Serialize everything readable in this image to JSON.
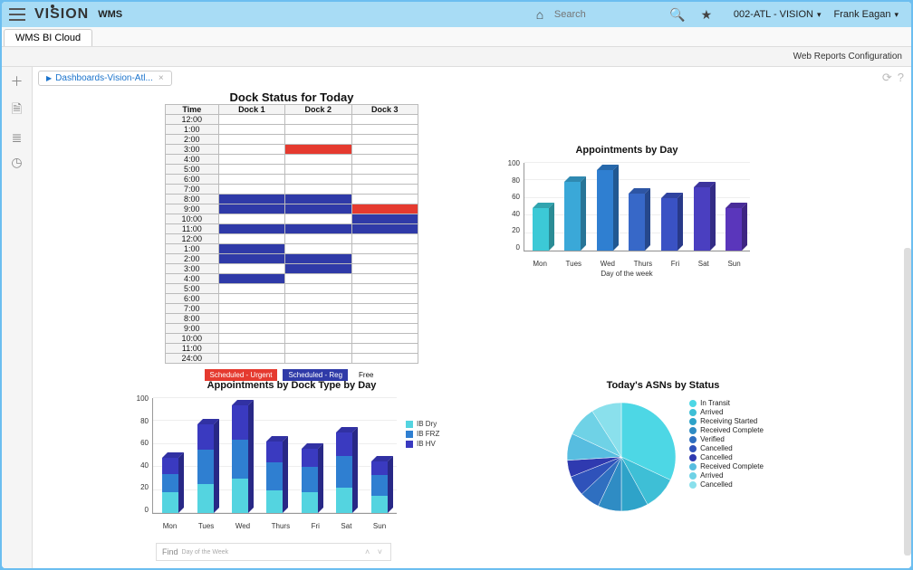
{
  "header": {
    "logo_text": "VISION",
    "app_name": "WMS",
    "search_placeholder": "Search",
    "location": "002-ATL - VISION",
    "user": "Frank Eagan"
  },
  "tabs": {
    "active": "WMS BI Cloud"
  },
  "toolbar": {
    "right_label": "Web Reports Configuration"
  },
  "breadcrumb": {
    "label": "Dashboards-Vision-Atl..."
  },
  "dock_status": {
    "title": "Dock Status for Today",
    "columns": [
      "Time",
      "Dock 1",
      "Dock 2",
      "Dock 3"
    ],
    "times": [
      "12:00",
      "1:00",
      "2:00",
      "3:00",
      "4:00",
      "5:00",
      "6:00",
      "7:00",
      "8:00",
      "9:00",
      "10:00",
      "11:00",
      "12:00",
      "1:00",
      "2:00",
      "3:00",
      "4:00",
      "5:00",
      "6:00",
      "7:00",
      "8:00",
      "9:00",
      "10:00",
      "11:00",
      "24:00"
    ],
    "cells": [
      [
        "",
        "",
        ""
      ],
      [
        "",
        "",
        ""
      ],
      [
        "",
        "",
        ""
      ],
      [
        "",
        "urgent",
        ""
      ],
      [
        "",
        "",
        ""
      ],
      [
        "",
        "",
        ""
      ],
      [
        "",
        "",
        ""
      ],
      [
        "",
        "",
        ""
      ],
      [
        "reg",
        "reg",
        ""
      ],
      [
        "reg",
        "reg",
        "urgent"
      ],
      [
        "",
        "",
        "reg"
      ],
      [
        "reg",
        "reg",
        "reg"
      ],
      [
        "",
        "",
        ""
      ],
      [
        "reg",
        "",
        ""
      ],
      [
        "reg",
        "reg",
        ""
      ],
      [
        "",
        "reg",
        ""
      ],
      [
        "reg",
        "",
        ""
      ],
      [
        "",
        "",
        ""
      ],
      [
        "",
        "",
        ""
      ],
      [
        "",
        "",
        ""
      ],
      [
        "",
        "",
        ""
      ],
      [
        "",
        "",
        ""
      ],
      [
        "",
        "",
        ""
      ],
      [
        "",
        "",
        ""
      ],
      [
        "",
        "",
        ""
      ]
    ],
    "legend": {
      "urgent": {
        "label": "Scheduled - Urgent",
        "color": "#e53a2f"
      },
      "reg": {
        "label": "Scheduled - Reg",
        "color": "#2f3aa8"
      },
      "free": {
        "label": "Free"
      }
    }
  },
  "appt_by_day": {
    "title": "Appointments by Day",
    "type": "bar3d",
    "ylim": [
      0,
      100
    ],
    "ytick_step": 20,
    "x_axis_label": "Day of the week",
    "categories": [
      "Mon",
      "Tues",
      "Wed",
      "Thurs",
      "Fri",
      "Sat",
      "Sun"
    ],
    "values": [
      48,
      78,
      92,
      65,
      60,
      72,
      48
    ],
    "colors": [
      "#3cc9d6",
      "#3aa8d8",
      "#2f7fd1",
      "#3768c8",
      "#3a52c4",
      "#4a3fc0",
      "#5a36bb"
    ],
    "top_shade": 0.82,
    "side_shade": 0.7,
    "grid_color": "#eeeeee"
  },
  "appt_by_dock": {
    "title": "Appointments by Dock Type by Day",
    "type": "stacked_bar3d",
    "ylim": [
      0,
      100
    ],
    "ytick_step": 20,
    "x_axis_label": "Day of the Week",
    "categories": [
      "Mon",
      "Tues",
      "Wed",
      "Thurs",
      "Fri",
      "Sat",
      "Sun"
    ],
    "series": [
      {
        "name": "IB Dry",
        "color": "#54d4e0",
        "values": [
          18,
          25,
          30,
          20,
          18,
          22,
          15
        ]
      },
      {
        "name": "IB FRZ",
        "color": "#2f7fd1",
        "values": [
          16,
          30,
          34,
          24,
          22,
          28,
          18
        ]
      },
      {
        "name": "IB HV",
        "color": "#3a3ac0",
        "values": [
          14,
          22,
          30,
          18,
          16,
          20,
          12
        ]
      }
    ]
  },
  "asn_pie": {
    "title": "Today's ASNs by Status",
    "type": "pie",
    "slices": [
      {
        "label": "In Transit",
        "value": 32,
        "color": "#4dd7e5"
      },
      {
        "label": "Arrived",
        "value": 10,
        "color": "#3ebfd6"
      },
      {
        "label": "Receiving Started",
        "value": 8,
        "color": "#2ea3c9"
      },
      {
        "label": "Received Complete",
        "value": 7,
        "color": "#2f8cc4"
      },
      {
        "label": "Verified",
        "value": 6,
        "color": "#2f6fc0"
      },
      {
        "label": "Cancelled",
        "value": 6,
        "color": "#2f52ba"
      },
      {
        "label": "Cancelled",
        "value": 5,
        "color": "#2f3ab0"
      },
      {
        "label": "Received Complete",
        "value": 8,
        "color": "#57bde0"
      },
      {
        "label": "Arrived",
        "value": 9,
        "color": "#6fd2e6"
      },
      {
        "label": "Cancelled",
        "value": 9,
        "color": "#8ae0ec"
      }
    ]
  },
  "find": {
    "label": "Find",
    "hint": "Day of the Week"
  }
}
